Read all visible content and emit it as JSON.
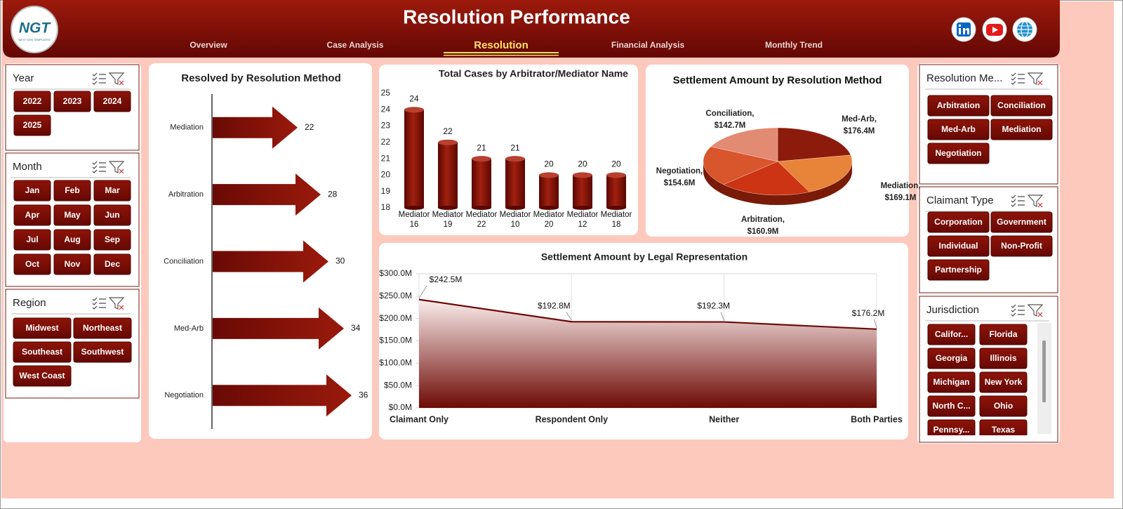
{
  "header": {
    "logo": "NGT",
    "logo_subtitle": "NEXT GEN TEMPLATES",
    "title": "Resolution Performance"
  },
  "nav": {
    "items": [
      "Overview",
      "Case Analysis",
      "Resolution",
      "Financial Analysis",
      "Monthly Trend"
    ],
    "active": 2
  },
  "slicers": [
    {
      "title": "Year",
      "items": [
        "2022",
        "2023",
        "2024",
        "2025"
      ]
    },
    {
      "title": "Month",
      "items": [
        "Jan",
        "Feb",
        "Mar",
        "Apr",
        "May",
        "Jun",
        "Jul",
        "Aug",
        "Sep",
        "Oct",
        "Nov",
        "Dec"
      ]
    },
    {
      "title": "Region",
      "items": [
        "Midwest",
        "Northeast",
        "Southeast",
        "Southwest",
        "West Coast"
      ]
    },
    {
      "title": "Resolution Me...",
      "items": [
        "Arbitration",
        "Conciliation",
        "Med-Arb",
        "Mediation",
        "Negotiation"
      ]
    },
    {
      "title": "Claimant Type",
      "items": [
        "Corporation",
        "Government",
        "Individual",
        "Non-Profit",
        "Partnership"
      ]
    },
    {
      "title": "Jurisdiction",
      "items": [
        "Califor...",
        "Florida",
        "Georgia",
        "Illinois",
        "Michigan",
        "New York",
        "North C...",
        "Ohio",
        "Pennsy...",
        "Texas"
      ]
    }
  ],
  "chart_data": [
    {
      "type": "bar",
      "orientation": "horizontal",
      "title": "Resolved by Resolution Method",
      "categories": [
        "Mediation",
        "Arbitration",
        "Conciliation",
        "Med-Arb",
        "Negotiation"
      ],
      "values": [
        22,
        28,
        30,
        34,
        36
      ],
      "color": "#7a0c06"
    },
    {
      "type": "bar",
      "title": "Total Cases by Arbitrator/Mediator Name",
      "categories": [
        "Mediator 16",
        "Mediator 19",
        "Mediator 22",
        "Mediator 10",
        "Mediator 20",
        "Mediator 12",
        "Mediator 18"
      ],
      "values": [
        24,
        22,
        21,
        21,
        20,
        20,
        20
      ],
      "color": "#7a0c06",
      "ylim": [
        18,
        25
      ],
      "yticks": [
        18,
        19,
        20,
        21,
        22,
        23,
        24,
        25
      ]
    },
    {
      "type": "pie",
      "title": "Settlement Amount by Resolution Method",
      "categories": [
        "Med-Arb,",
        "Mediation,",
        "Arbitration,",
        "Negotiation,",
        "Conciliation,"
      ],
      "values": [
        176.4,
        169.1,
        160.9,
        154.6,
        142.7
      ],
      "value_labels": [
        "$176.4M",
        "$169.1M",
        "$160.9M",
        "$154.6M",
        "$142.7M"
      ],
      "colors": [
        "#8c1b0b",
        "#e8833a",
        "#cc3414",
        "#d9552c",
        "#e38a72"
      ]
    },
    {
      "type": "area",
      "title": "Settlement Amount by Legal Representation",
      "categories": [
        "Claimant Only",
        "Respondent Only",
        "Neither",
        "Both Parties"
      ],
      "values": [
        242.5,
        192.8,
        192.3,
        176.2
      ],
      "value_labels": [
        "$242.5M",
        "$192.8M",
        "$192.3M",
        "$176.2M"
      ],
      "color": "#6e0a05",
      "ylim": [
        0,
        300
      ],
      "yticks": [
        {
          "value": 0,
          "label": "$0.0M"
        },
        {
          "value": 50,
          "label": "$50.0M"
        },
        {
          "value": 100,
          "label": "$100.0M"
        },
        {
          "value": 150,
          "label": "$150.0M"
        },
        {
          "value": 200,
          "label": "$200.0M"
        },
        {
          "value": 250,
          "label": "$250.0M"
        },
        {
          "value": 300,
          "label": "$300.0M"
        }
      ]
    }
  ]
}
